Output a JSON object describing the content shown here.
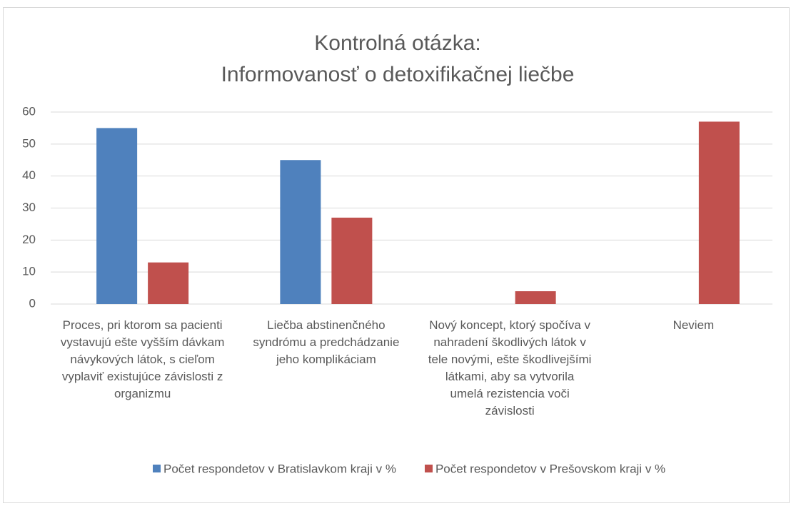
{
  "chart_data": {
    "type": "bar",
    "title": [
      "Kontrolná otázka:",
      "Informovanosť o detoxifikačnej liečbe"
    ],
    "categories": [
      "Proces, pri ktorom sa pacienti vystavujú ešte vyšším dávkam návykových látok, s cieľom vyplaviť existujúce závislosti z organizmu",
      "Liečba abstinenčného syndrómu a predchádzanie jeho komplikáciam",
      "Nový koncept, ktorý spočíva v nahradení škodlivých látok v tele novými, ešte škodlivejšími látkami, aby sa vytvorila umelá rezistencia voči závislosti",
      "Neviem"
    ],
    "series": [
      {
        "name": "Počet respondetov v Bratislavkom kraji v %",
        "color": "#4f81bd",
        "values": [
          55,
          45,
          0,
          0
        ]
      },
      {
        "name": "Počet respondetov v Prešovskom kraji v %",
        "color": "#c0504d",
        "values": [
          13,
          27,
          4,
          57
        ]
      }
    ],
    "ylim": [
      0,
      60
    ],
    "yticks": [
      0,
      10,
      20,
      30,
      40,
      50,
      60
    ],
    "grid": true,
    "legend": "bottom"
  }
}
